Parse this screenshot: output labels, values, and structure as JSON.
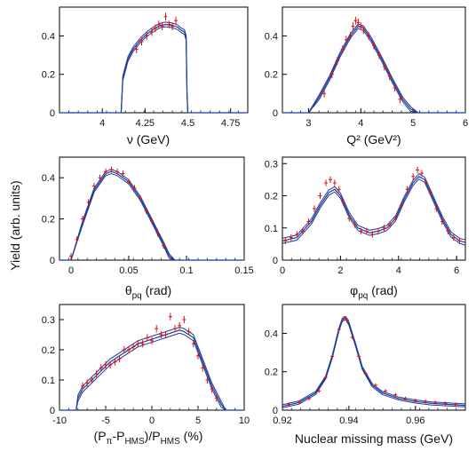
{
  "figure": {
    "ylabel": "Yield (arb. units)",
    "colors": {
      "model": "#1f3c99",
      "data": "#e01010",
      "axis": "#000000",
      "tick": "#1f3c99"
    }
  },
  "chart_data": [
    {
      "type": "line",
      "xlabel": "ν (GeV)",
      "xlim": [
        3.75,
        4.85
      ],
      "ylim": [
        0,
        0.55
      ],
      "xticks": [
        "4",
        "4.25",
        "4.5",
        "4.75"
      ],
      "xtick_values": [
        4,
        4.25,
        4.5,
        4.75
      ],
      "yticks": [
        "0",
        "0.2",
        "0.4"
      ],
      "ytick_values": [
        0,
        0.2,
        0.4
      ],
      "model_x": [
        3.75,
        4.11,
        4.12,
        4.15,
        4.18,
        4.22,
        4.26,
        4.3,
        4.34,
        4.37,
        4.41,
        4.44,
        4.46,
        4.48,
        4.49,
        4.495,
        4.5,
        4.85
      ],
      "model_y": [
        0,
        0,
        0.18,
        0.28,
        0.33,
        0.375,
        0.41,
        0.435,
        0.455,
        0.46,
        0.455,
        0.445,
        0.43,
        0.42,
        0.39,
        0.1,
        0,
        0
      ],
      "band": 0.012,
      "data_x": [
        4.2,
        4.23,
        4.26,
        4.29,
        4.31,
        4.33,
        4.35,
        4.37,
        4.39,
        4.41,
        4.43
      ],
      "data_y": [
        0.33,
        0.37,
        0.4,
        0.42,
        0.44,
        0.46,
        0.45,
        0.5,
        0.46,
        0.45,
        0.48
      ],
      "data_err": [
        0.02,
        0.02,
        0.02,
        0.02,
        0.02,
        0.02,
        0.02,
        0.02,
        0.02,
        0.02,
        0.02
      ]
    },
    {
      "type": "line",
      "xlabel": "Q² (GeV²)",
      "xlim": [
        2.5,
        6
      ],
      "ylim": [
        0,
        0.55
      ],
      "xticks": [
        "3",
        "4",
        "5",
        "6"
      ],
      "xtick_values": [
        3,
        4,
        5,
        6
      ],
      "yticks": [
        "0",
        "0.2",
        "0.4"
      ],
      "ytick_values": [
        0,
        0.2,
        0.4
      ],
      "model_x": [
        2.5,
        3.0,
        3.2,
        3.4,
        3.6,
        3.8,
        3.95,
        4.05,
        4.2,
        4.4,
        4.6,
        4.8,
        4.95,
        5.1,
        6.0
      ],
      "model_y": [
        0,
        0,
        0.08,
        0.18,
        0.3,
        0.4,
        0.45,
        0.44,
        0.38,
        0.28,
        0.17,
        0.07,
        0.02,
        0,
        0
      ],
      "band": 0.012,
      "data_x": [
        3.3,
        3.45,
        3.55,
        3.65,
        3.72,
        3.8,
        3.85,
        3.9,
        3.95,
        4.0,
        4.05,
        4.15,
        4.25,
        4.35,
        4.45,
        4.55,
        4.65,
        4.75
      ],
      "data_y": [
        0.1,
        0.2,
        0.27,
        0.33,
        0.38,
        0.4,
        0.45,
        0.48,
        0.47,
        0.45,
        0.43,
        0.4,
        0.35,
        0.3,
        0.24,
        0.19,
        0.13,
        0.07
      ],
      "data_err": [
        0.02,
        0.02,
        0.02,
        0.02,
        0.02,
        0.02,
        0.02,
        0.02,
        0.02,
        0.02,
        0.02,
        0.02,
        0.02,
        0.02,
        0.02,
        0.02,
        0.02,
        0.02
      ]
    },
    {
      "type": "line",
      "xlabel_main": "θ",
      "xlabel_sub": "pq",
      "xlabel_tail": " (rad)",
      "xlim": [
        -0.01,
        0.15
      ],
      "ylim": [
        0,
        0.5
      ],
      "xticks": [
        "0",
        "0.05",
        "0.1",
        "0.15"
      ],
      "xtick_values": [
        0,
        0.05,
        0.1,
        0.15
      ],
      "yticks": [
        "0",
        "0.2",
        "0.4"
      ],
      "ytick_values": [
        0,
        0.2,
        0.4
      ],
      "model_x": [
        -0.01,
        0.0,
        0.01,
        0.02,
        0.03,
        0.035,
        0.04,
        0.05,
        0.06,
        0.07,
        0.08,
        0.085,
        0.09,
        0.15
      ],
      "model_y": [
        0,
        0,
        0.18,
        0.34,
        0.42,
        0.43,
        0.42,
        0.38,
        0.3,
        0.19,
        0.08,
        0.02,
        0,
        0
      ],
      "band": 0.01,
      "data_x": [
        0.0,
        0.005,
        0.01,
        0.015,
        0.02,
        0.025,
        0.03,
        0.035,
        0.04,
        0.045,
        0.05,
        0.055,
        0.06,
        0.065,
        0.07,
        0.075,
        0.08
      ],
      "data_y": [
        0.02,
        0.1,
        0.2,
        0.28,
        0.36,
        0.4,
        0.43,
        0.44,
        0.43,
        0.42,
        0.38,
        0.35,
        0.3,
        0.24,
        0.19,
        0.13,
        0.07
      ],
      "data_err": [
        0.015,
        0.015,
        0.015,
        0.015,
        0.015,
        0.015,
        0.015,
        0.015,
        0.015,
        0.015,
        0.015,
        0.015,
        0.015,
        0.015,
        0.015,
        0.015,
        0.015
      ]
    },
    {
      "type": "line",
      "xlabel_main": "φ",
      "xlabel_sub": "pq",
      "xlabel_tail": " (rad)",
      "xlim": [
        0,
        6.3
      ],
      "ylim": [
        0,
        0.32
      ],
      "xticks": [
        "0",
        "2",
        "4",
        "6"
      ],
      "xtick_values": [
        0,
        2,
        4,
        6
      ],
      "yticks": [
        "0",
        "0.1",
        "0.2",
        "0.3"
      ],
      "ytick_values": [
        0,
        0.1,
        0.2,
        0.3
      ],
      "model_x": [
        0,
        0.5,
        1.0,
        1.3,
        1.6,
        1.8,
        2.0,
        2.3,
        2.6,
        3.0,
        3.3,
        3.6,
        3.9,
        4.2,
        4.5,
        4.7,
        4.9,
        5.2,
        5.5,
        5.8,
        6.1,
        6.3
      ],
      "model_y": [
        0.06,
        0.07,
        0.12,
        0.17,
        0.21,
        0.22,
        0.2,
        0.14,
        0.1,
        0.085,
        0.09,
        0.1,
        0.13,
        0.19,
        0.24,
        0.26,
        0.25,
        0.19,
        0.13,
        0.08,
        0.06,
        0.055
      ],
      "band": 0.008,
      "data_x": [
        0.1,
        0.3,
        0.5,
        0.7,
        0.9,
        1.1,
        1.3,
        1.5,
        1.65,
        1.8,
        1.95,
        2.1,
        2.3,
        2.5,
        2.7,
        2.9,
        3.1,
        3.3,
        3.5,
        3.7,
        3.9,
        4.1,
        4.3,
        4.5,
        4.65,
        4.8,
        4.95,
        5.1,
        5.3,
        5.5,
        5.7,
        5.9,
        6.1
      ],
      "data_y": [
        0.06,
        0.07,
        0.08,
        0.09,
        0.12,
        0.16,
        0.2,
        0.24,
        0.25,
        0.24,
        0.22,
        0.18,
        0.13,
        0.11,
        0.09,
        0.09,
        0.08,
        0.09,
        0.1,
        0.11,
        0.13,
        0.17,
        0.22,
        0.26,
        0.28,
        0.27,
        0.24,
        0.21,
        0.16,
        0.12,
        0.09,
        0.07,
        0.06
      ],
      "data_err": [
        0.01,
        0.01,
        0.01,
        0.01,
        0.01,
        0.01,
        0.01,
        0.01,
        0.01,
        0.01,
        0.01,
        0.01,
        0.01,
        0.01,
        0.01,
        0.01,
        0.01,
        0.01,
        0.01,
        0.01,
        0.01,
        0.01,
        0.01,
        0.01,
        0.01,
        0.01,
        0.01,
        0.01,
        0.01,
        0.01,
        0.01,
        0.01,
        0.01
      ]
    },
    {
      "type": "line",
      "xlabel_main": "(P",
      "xlabel_sub1": "π",
      "xlabel_mid": "-P",
      "xlabel_sub2": "HMS",
      "xlabel_mid2": ")/P",
      "xlabel_sub3": "HMS",
      "xlabel_tail": " (%)",
      "xlim": [
        -10,
        10
      ],
      "ylim": [
        0,
        0.35
      ],
      "xticks": [
        "-10",
        "-5",
        "0",
        "5",
        "10"
      ],
      "xtick_values": [
        -10,
        -5,
        0,
        5,
        10
      ],
      "yticks": [
        "0",
        "0.1",
        "0.2",
        "0.3"
      ],
      "ytick_values": [
        0,
        0.1,
        0.2,
        0.3
      ],
      "model_x": [
        -10,
        -8.2,
        -8.0,
        -7.5,
        -6.5,
        -5.5,
        -4.5,
        -3.5,
        -2.5,
        -1.5,
        -0.5,
        0.5,
        1.5,
        2.5,
        3.0,
        3.5,
        4.0,
        4.5,
        5.0,
        5.5,
        6.0,
        6.5,
        7.0,
        7.5,
        8.0,
        10
      ],
      "model_y": [
        0,
        0,
        0.04,
        0.07,
        0.1,
        0.13,
        0.16,
        0.18,
        0.2,
        0.22,
        0.23,
        0.24,
        0.25,
        0.26,
        0.265,
        0.26,
        0.25,
        0.24,
        0.2,
        0.16,
        0.12,
        0.08,
        0.05,
        0.02,
        0.0,
        0
      ],
      "band": 0.01,
      "data_x": [
        -7.5,
        -7.0,
        -6.5,
        -6.0,
        -5.5,
        -5.0,
        -4.5,
        -4.0,
        -3.5,
        -3.0,
        -2.5,
        -2.0,
        -1.5,
        -1.0,
        -0.5,
        0.0,
        0.5,
        1.0,
        1.5,
        2.0,
        2.5,
        3.0,
        3.5,
        4.0,
        4.5,
        5.0,
        5.5,
        6.0,
        6.5,
        7.0
      ],
      "data_y": [
        0.08,
        0.09,
        0.1,
        0.12,
        0.14,
        0.15,
        0.15,
        0.16,
        0.17,
        0.2,
        0.2,
        0.21,
        0.22,
        0.22,
        0.24,
        0.23,
        0.27,
        0.25,
        0.25,
        0.31,
        0.27,
        0.28,
        0.3,
        0.26,
        0.22,
        0.18,
        0.14,
        0.1,
        0.07,
        0.04
      ],
      "data_err": [
        0.012,
        0.012,
        0.012,
        0.012,
        0.012,
        0.012,
        0.012,
        0.012,
        0.012,
        0.012,
        0.012,
        0.012,
        0.012,
        0.012,
        0.012,
        0.012,
        0.012,
        0.012,
        0.012,
        0.012,
        0.012,
        0.012,
        0.012,
        0.012,
        0.012,
        0.012,
        0.012,
        0.012,
        0.012,
        0.012
      ]
    },
    {
      "type": "line",
      "xlabel": "Nuclear missing mass (GeV)",
      "xlim": [
        0.92,
        0.975
      ],
      "ylim": [
        0,
        0.55
      ],
      "xticks": [
        "0.92",
        "0.94",
        "0.96"
      ],
      "xtick_values": [
        0.92,
        0.94,
        0.96
      ],
      "yticks": [
        "0",
        "0.2",
        "0.4"
      ],
      "ytick_values": [
        0,
        0.2,
        0.4
      ],
      "model_x": [
        0.92,
        0.925,
        0.93,
        0.933,
        0.935,
        0.937,
        0.938,
        0.939,
        0.94,
        0.942,
        0.944,
        0.947,
        0.95,
        0.955,
        0.96,
        0.965,
        0.97,
        0.975
      ],
      "model_y": [
        0.02,
        0.04,
        0.09,
        0.17,
        0.28,
        0.42,
        0.47,
        0.48,
        0.45,
        0.34,
        0.22,
        0.13,
        0.09,
        0.06,
        0.045,
        0.035,
        0.03,
        0.025
      ],
      "band": 0.008,
      "data_x": [
        0.922,
        0.925,
        0.928,
        0.931,
        0.933,
        0.935,
        0.937,
        0.9385,
        0.9395,
        0.941,
        0.943,
        0.945,
        0.948,
        0.951,
        0.954,
        0.957,
        0.96,
        0.963,
        0.966,
        0.969,
        0.972
      ],
      "data_y": [
        0.03,
        0.04,
        0.06,
        0.1,
        0.17,
        0.28,
        0.42,
        0.48,
        0.47,
        0.38,
        0.28,
        0.19,
        0.13,
        0.1,
        0.08,
        0.06,
        0.05,
        0.045,
        0.04,
        0.035,
        0.03
      ],
      "data_err": [
        0.01,
        0.01,
        0.01,
        0.01,
        0.01,
        0.01,
        0.01,
        0.01,
        0.01,
        0.01,
        0.01,
        0.01,
        0.01,
        0.01,
        0.01,
        0.01,
        0.01,
        0.01,
        0.01,
        0.01,
        0.01
      ]
    }
  ]
}
